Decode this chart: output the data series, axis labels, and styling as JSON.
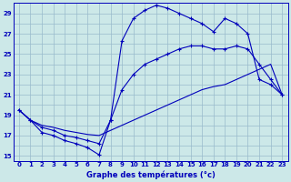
{
  "title": "Graphe des températures (°c)",
  "bg_color": "#cce8e8",
  "line_color": "#0000bb",
  "grid_color": "#99bbcc",
  "xlim": [
    -0.5,
    23.5
  ],
  "ylim": [
    14.5,
    30.0
  ],
  "yticks": [
    15,
    17,
    19,
    21,
    23,
    25,
    27,
    29
  ],
  "xticks": [
    0,
    1,
    2,
    3,
    4,
    5,
    6,
    7,
    8,
    9,
    10,
    11,
    12,
    13,
    14,
    15,
    16,
    17,
    18,
    19,
    20,
    21,
    22,
    23
  ],
  "series1_x": [
    0,
    1,
    2,
    3,
    4,
    5,
    6,
    7,
    8,
    9,
    10,
    11,
    12,
    13,
    14,
    15,
    16,
    17,
    18,
    19,
    20,
    21,
    22,
    23
  ],
  "series1_y": [
    19.5,
    18.5,
    17.3,
    17.0,
    16.5,
    16.2,
    15.8,
    15.1,
    18.5,
    26.3,
    28.5,
    29.3,
    29.8,
    29.5,
    29.0,
    28.5,
    28.0,
    27.2,
    28.5,
    28.0,
    27.0,
    22.5,
    22.0,
    21.0
  ],
  "series2_x": [
    0,
    1,
    2,
    3,
    4,
    5,
    6,
    7,
    8,
    9,
    10,
    11,
    12,
    13,
    14,
    15,
    16,
    17,
    18,
    19,
    20,
    21,
    22,
    23
  ],
  "series2_y": [
    19.5,
    18.5,
    17.8,
    17.5,
    17.0,
    16.8,
    16.5,
    16.2,
    18.5,
    21.5,
    23.0,
    24.0,
    24.5,
    25.0,
    25.5,
    25.8,
    25.8,
    25.5,
    25.5,
    25.8,
    25.5,
    24.0,
    22.5,
    21.0
  ],
  "series3_x": [
    0,
    1,
    2,
    3,
    4,
    5,
    6,
    7,
    8,
    9,
    10,
    11,
    12,
    13,
    14,
    15,
    16,
    17,
    18,
    19,
    20,
    21,
    22,
    23
  ],
  "series3_y": [
    19.5,
    18.5,
    18.0,
    17.8,
    17.5,
    17.3,
    17.1,
    17.0,
    17.5,
    18.0,
    18.5,
    19.0,
    19.5,
    20.0,
    20.5,
    21.0,
    21.5,
    21.8,
    22.0,
    22.5,
    23.0,
    23.5,
    24.0,
    21.0
  ]
}
